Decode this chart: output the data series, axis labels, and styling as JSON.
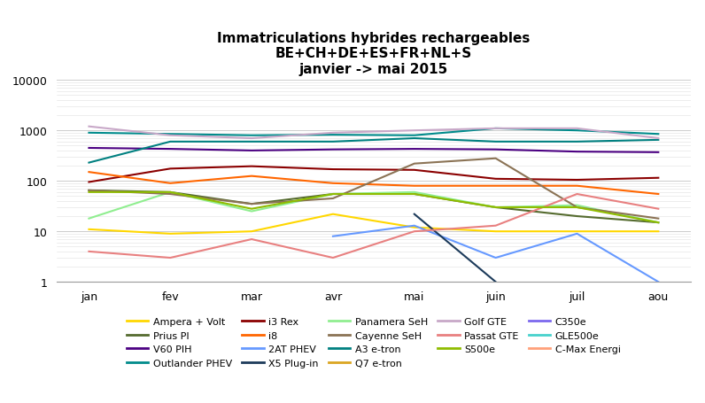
{
  "title": "Immatriculations hybrides rechargeables\nBE+CH+DE+ES+FR+NL+S\njanvier -> mai 2015",
  "x_labels": [
    "jan",
    "fev",
    "mar",
    "avr",
    "mai",
    "juin",
    "juil",
    "aou"
  ],
  "series": [
    {
      "name": "Ampera + Volt",
      "color": "#FFD700",
      "values": [
        11,
        9,
        10,
        22,
        12,
        10,
        10,
        10
      ]
    },
    {
      "name": "Prius PI",
      "color": "#556B2F",
      "values": [
        65,
        60,
        35,
        55,
        55,
        30,
        20,
        15
      ]
    },
    {
      "name": "V60 PIH",
      "color": "#4B0082",
      "values": [
        450,
        430,
        400,
        420,
        430,
        420,
        380,
        370
      ]
    },
    {
      "name": "Outlander PHEV",
      "color": "#008B8B",
      "values": [
        900,
        850,
        800,
        820,
        800,
        1100,
        1000,
        850
      ]
    },
    {
      "name": "i3 Rex",
      "color": "#8B0000",
      "values": [
        95,
        175,
        195,
        170,
        165,
        110,
        105,
        115
      ]
    },
    {
      "name": "i8",
      "color": "#FF6600",
      "values": [
        150,
        90,
        125,
        90,
        80,
        80,
        80,
        55
      ]
    },
    {
      "name": "2AT PHEV",
      "color": "#6699FF",
      "values": [
        null,
        null,
        null,
        8,
        13,
        3,
        9,
        1
      ]
    },
    {
      "name": "X5 Plug-in",
      "color": "#1C3A5A",
      "values": [
        null,
        null,
        null,
        null,
        22,
        1,
        null,
        null
      ]
    },
    {
      "name": "Panamera SeH",
      "color": "#90EE90",
      "values": [
        18,
        60,
        25,
        55,
        60,
        30,
        33,
        15
      ]
    },
    {
      "name": "Cayenne SeH",
      "color": "#8B7355",
      "values": [
        65,
        55,
        35,
        45,
        220,
        280,
        30,
        18
      ]
    },
    {
      "name": "A3 e-tron",
      "color": "#008080",
      "values": [
        230,
        600,
        600,
        600,
        700,
        600,
        600,
        650
      ]
    },
    {
      "name": "Q7 e-tron",
      "color": "#DAA520",
      "values": [
        null,
        null,
        null,
        null,
        null,
        null,
        null,
        null
      ]
    },
    {
      "name": "Golf GTE",
      "color": "#C8A8C8",
      "values": [
        1200,
        800,
        700,
        900,
        1000,
        1100,
        1100,
        700
      ]
    },
    {
      "name": "Passat GTE",
      "color": "#E88080",
      "values": [
        4,
        3,
        7,
        3,
        10,
        13,
        55,
        28
      ]
    },
    {
      "name": "S500e",
      "color": "#8FBC00",
      "values": [
        60,
        60,
        28,
        55,
        55,
        30,
        30,
        15
      ]
    },
    {
      "name": "C350e",
      "color": "#7B68EE",
      "values": [
        null,
        null,
        null,
        null,
        null,
        null,
        null,
        null
      ]
    },
    {
      "name": "GLE500e",
      "color": "#48D1CC",
      "values": [
        null,
        null,
        null,
        null,
        null,
        null,
        null,
        null
      ]
    },
    {
      "name": "C-Max Energi",
      "color": "#FFA07A",
      "values": [
        null,
        null,
        null,
        null,
        null,
        null,
        null,
        null
      ]
    }
  ],
  "legend_order": [
    "Ampera + Volt",
    "Prius PI",
    "V60 PIH",
    "Outlander PHEV",
    "i3 Rex",
    "i8",
    "2AT PHEV",
    "X5 Plug-in",
    "Panamera SeH",
    "Cayenne SeH",
    "A3 e-tron",
    "Q7 e-tron",
    "Golf GTE",
    "Passat GTE",
    "S500e",
    "C350e",
    "GLE500e",
    "C-Max Energi"
  ],
  "ylim": [
    1,
    10000
  ],
  "yticks": [
    1,
    10,
    100,
    1000,
    10000
  ]
}
